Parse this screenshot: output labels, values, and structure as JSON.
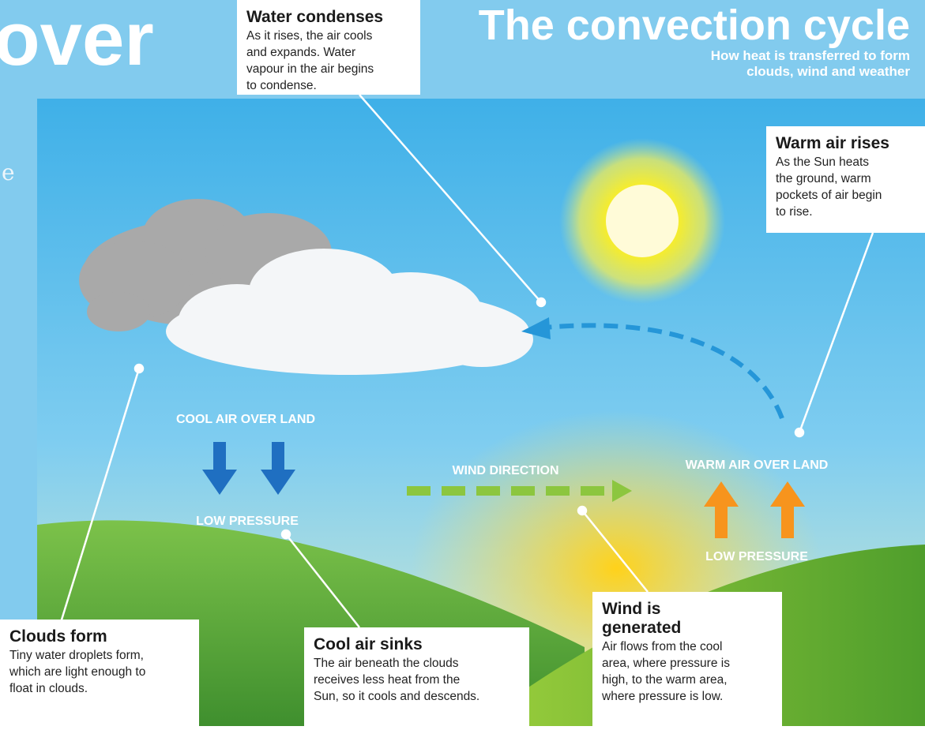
{
  "header": {
    "fragment_title": "over",
    "fragment_text": "e",
    "title": "The convection cycle",
    "subtitle": [
      "How heat is transferred to form",
      "clouds, wind and weather"
    ]
  },
  "callouts": [
    {
      "title": [
        "Water condenses"
      ],
      "body": [
        "As it rises, the air cools",
        "and expands. Water",
        "vapour in the air begins",
        "to condense."
      ]
    },
    {
      "title": [
        "Warm air rises"
      ],
      "body": [
        "As the Sun heats",
        "the ground, warm",
        "pockets of air begin",
        "to rise."
      ]
    },
    {
      "title": [
        "Clouds form"
      ],
      "body": [
        "Tiny water droplets form,",
        "which are light enough to",
        "float in clouds."
      ]
    },
    {
      "title": [
        "Cool air sinks"
      ],
      "body": [
        "The air beneath the clouds",
        "receives less heat from the",
        "Sun, so it cools and descends."
      ]
    },
    {
      "title": [
        "Wind is",
        "generated"
      ],
      "body": [
        "Air flows from the cool",
        "area, where pressure is",
        "high, to the warm area,",
        "where pressure is low."
      ]
    }
  ],
  "labels": [
    "COOL AIR OVER LAND",
    "LOW PRESSURE",
    "WIND DIRECTION",
    "WARM AIR OVER LAND",
    "LOW PRESSURE"
  ]
}
